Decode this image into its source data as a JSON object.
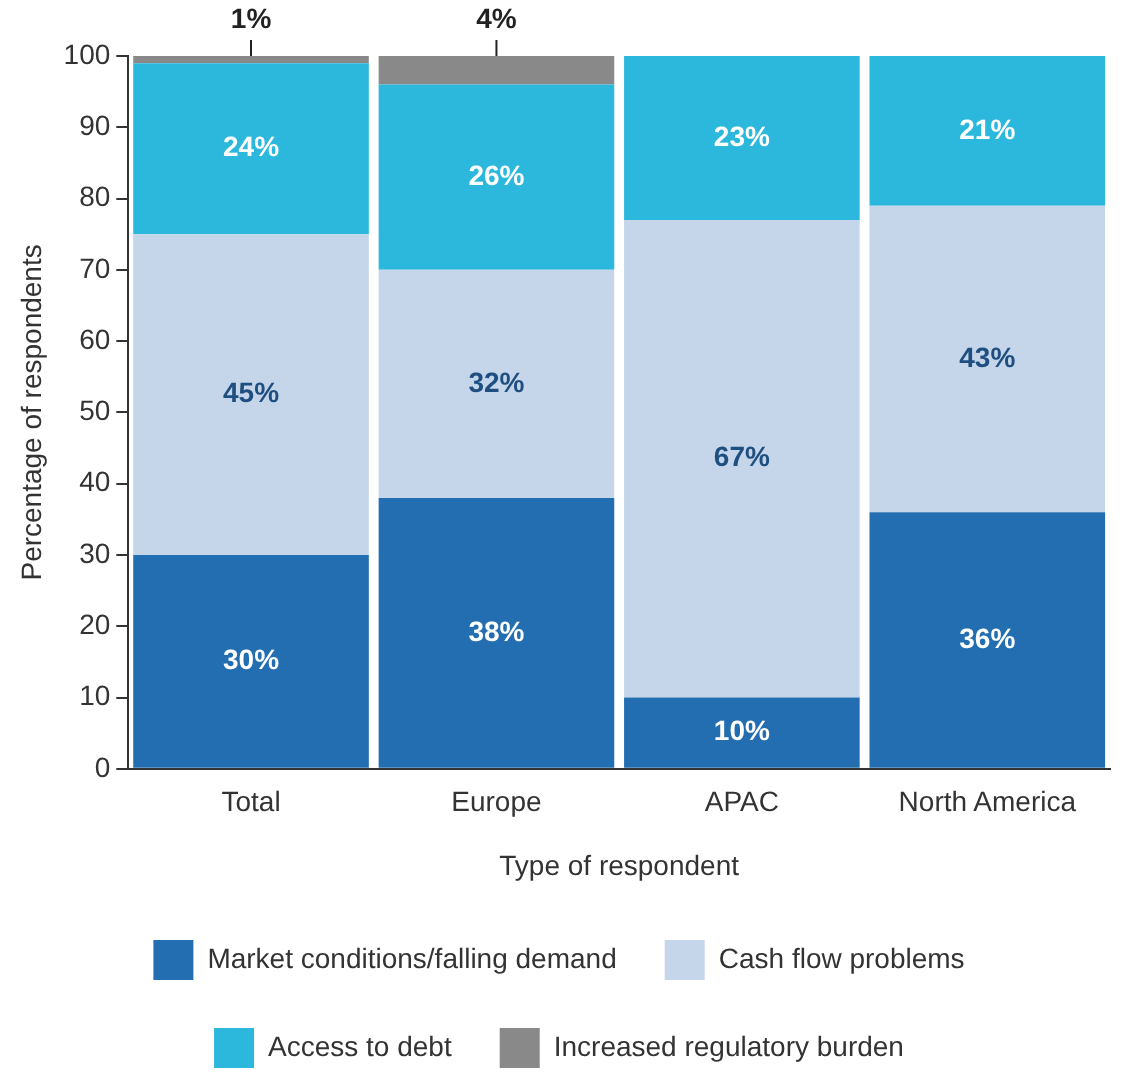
{
  "chart_data": {
    "type": "bar",
    "stacked": true,
    "xlabel": "Type of respondent",
    "ylabel": "Percentage of respondents",
    "categories": [
      "Total",
      "Europe",
      "APAC",
      "North America"
    ],
    "series": [
      {
        "name": "Market conditions/falling demand",
        "color": "#236eb0",
        "values": [
          30,
          38,
          10,
          36
        ],
        "value_labels": [
          "30%",
          "38%",
          "10%",
          "36%"
        ]
      },
      {
        "name": "Cash flow problems",
        "color": "#c5d5ea",
        "values": [
          45,
          32,
          67,
          43
        ],
        "value_labels": [
          "45%",
          "32%",
          "67%",
          "43%"
        ]
      },
      {
        "name": "Access to debt",
        "color": "#2bb8dc",
        "values": [
          24,
          26,
          23,
          21
        ],
        "value_labels": [
          "24%",
          "26%",
          "23%",
          "21%"
        ]
      },
      {
        "name": "Increased regulatory burden",
        "color": "#898989",
        "values": [
          1,
          4,
          0,
          0
        ],
        "value_labels": [
          "1%",
          "4%",
          null,
          null
        ]
      }
    ],
    "ylim": [
      0,
      100
    ],
    "yticks": [
      0,
      10,
      20,
      30,
      40,
      50,
      60,
      70,
      80,
      90,
      100
    ],
    "grid": false,
    "legend": "bottom"
  }
}
